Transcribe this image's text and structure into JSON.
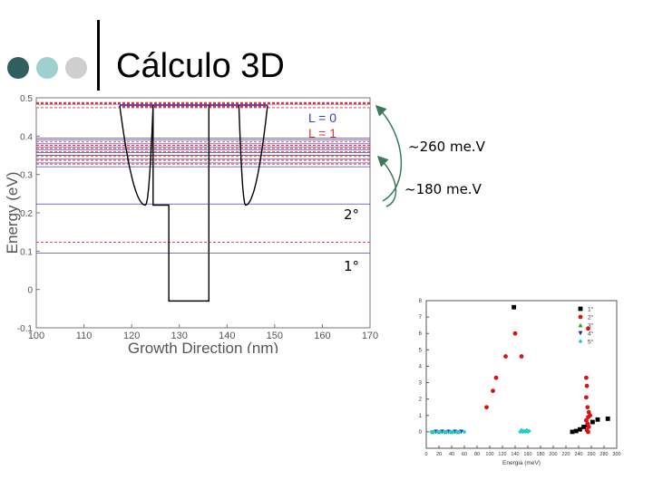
{
  "slide": {
    "title": "Cálculo 3D",
    "bullet_colors": [
      "#2f5f5f",
      "#9fd0d0",
      "#cfcfcf"
    ]
  },
  "annotations": {
    "gap_260": "~260 me.V",
    "gap_180": "~180 me.V",
    "level_2": "2°",
    "level_1": "1°",
    "arrow_color": "#3a7a5a"
  },
  "chart_data": [
    {
      "type": "line",
      "title": "",
      "xlabel": "Growth Direction (nm)",
      "ylabel": "Energy (eV)",
      "xlim": [
        100,
        170
      ],
      "ylim": [
        -0.1,
        0.5
      ],
      "xticks": [
        "100",
        "110",
        "120",
        "130",
        "140",
        "150",
        "160",
        "170"
      ],
      "yticks": [
        "-0.1",
        "0",
        "0.1",
        "0.2",
        "0.3",
        "0.4",
        "0.5"
      ],
      "legend": [
        {
          "name": "L = 0",
          "color": "#3b3fb8"
        },
        {
          "name": "L = 1",
          "color": "#e0383a"
        }
      ],
      "legend_position": "top-right",
      "potential_profile": {
        "x": [
          100,
          124.5,
          124.5,
          127.8,
          127.8,
          136.2,
          136.2,
          142.5,
          142.5,
          170
        ],
        "y": [
          0.48,
          0.48,
          0.22,
          0.22,
          -0.03,
          -0.03,
          0.48,
          0.48,
          0.22,
          0.22
        ],
        "color": "#000000"
      },
      "parabolas": [
        {
          "x_start": 117.5,
          "x_end": 124.5,
          "vertex_x": 122.9,
          "vertex_y": 0.22,
          "top_y": 0.48
        },
        {
          "x_start": 142.5,
          "x_end": 148.5,
          "vertex_x": 143.9,
          "vertex_y": 0.22,
          "top_y": 0.48
        }
      ],
      "levels_L0": [
        0.095,
        0.223,
        0.32,
        0.33,
        0.34,
        0.35,
        0.357,
        0.365,
        0.372,
        0.38,
        0.39,
        0.395,
        0.48,
        0.482
      ],
      "levels_L1": [
        0.123,
        0.327,
        0.337,
        0.347,
        0.36,
        0.368,
        0.376,
        0.385,
        0.475,
        0.478,
        0.484,
        0.487
      ]
    },
    {
      "type": "scatter",
      "xlabel": "Energia (meV)",
      "ylabel": "",
      "xlim": [
        0,
        300
      ],
      "ylim": [
        -1,
        8
      ],
      "xticks": [
        "0",
        "20",
        "40",
        "60",
        "80",
        "100",
        "120",
        "140",
        "160",
        "180",
        "200",
        "220",
        "240",
        "260",
        "280",
        "300"
      ],
      "yticks": [
        "0",
        "1",
        "2",
        "3",
        "4",
        "5",
        "6",
        "7",
        "8"
      ],
      "legend_position": "top-right",
      "series": [
        {
          "name": "1°",
          "color": "#000000",
          "marker": "square",
          "points": [
            [
              138,
              7.6
            ],
            [
              230,
              0.0
            ],
            [
              236,
              0.05
            ],
            [
              242,
              0.15
            ],
            [
              248,
              0.3
            ],
            [
              254,
              0.4
            ],
            [
              262,
              0.6
            ],
            [
              270,
              0.75
            ],
            [
              286,
              0.8
            ]
          ]
        },
        {
          "name": "2°",
          "color": "#dd1111",
          "marker": "circle",
          "points": [
            [
              95,
              1.5
            ],
            [
              105,
              2.5
            ],
            [
              110,
              3.3
            ],
            [
              125,
              4.6
            ],
            [
              140,
              6.0
            ],
            [
              150,
              4.6
            ],
            [
              255,
              6.3
            ],
            [
              252,
              3.3
            ],
            [
              253,
              2.8
            ],
            [
              252,
              2.1
            ],
            [
              254,
              1.5
            ],
            [
              256,
              1.2
            ],
            [
              258,
              1.0
            ],
            [
              255,
              0.9
            ],
            [
              252,
              0.7
            ],
            [
              254,
              0.5
            ],
            [
              256,
              0.3
            ],
            [
              253,
              0.1
            ],
            [
              255,
              0.0
            ]
          ]
        },
        {
          "name": "3°",
          "color": "#22aa22",
          "marker": "triangle-up",
          "points": [
            [
              10,
              0.0
            ],
            [
              20,
              0.0
            ],
            [
              30,
              0.0
            ],
            [
              40,
              0.0
            ],
            [
              50,
              0.0
            ]
          ]
        },
        {
          "name": "4°",
          "color": "#2222bb",
          "marker": "triangle-down",
          "points": [
            [
              15,
              0.0
            ],
            [
              25,
              0.0
            ],
            [
              35,
              0.0
            ],
            [
              45,
              0.0
            ],
            [
              55,
              0.0
            ]
          ]
        },
        {
          "name": "5°",
          "color": "#22cccc",
          "marker": "diamond",
          "points": [
            [
              8,
              0.0
            ],
            [
              12,
              0.0
            ],
            [
              18,
              0.0
            ],
            [
              22,
              0.0
            ],
            [
              28,
              0.0
            ],
            [
              32,
              0.0
            ],
            [
              38,
              0.0
            ],
            [
              42,
              0.0
            ],
            [
              48,
              0.0
            ],
            [
              52,
              0.0
            ],
            [
              60,
              0.0
            ],
            [
              148,
              0.0
            ],
            [
              150,
              0.1
            ],
            [
              152,
              0.0
            ],
            [
              154,
              0.05
            ],
            [
              156,
              0.0
            ],
            [
              158,
              0.1
            ],
            [
              160,
              0.0
            ],
            [
              162,
              0.05
            ]
          ]
        }
      ]
    }
  ]
}
